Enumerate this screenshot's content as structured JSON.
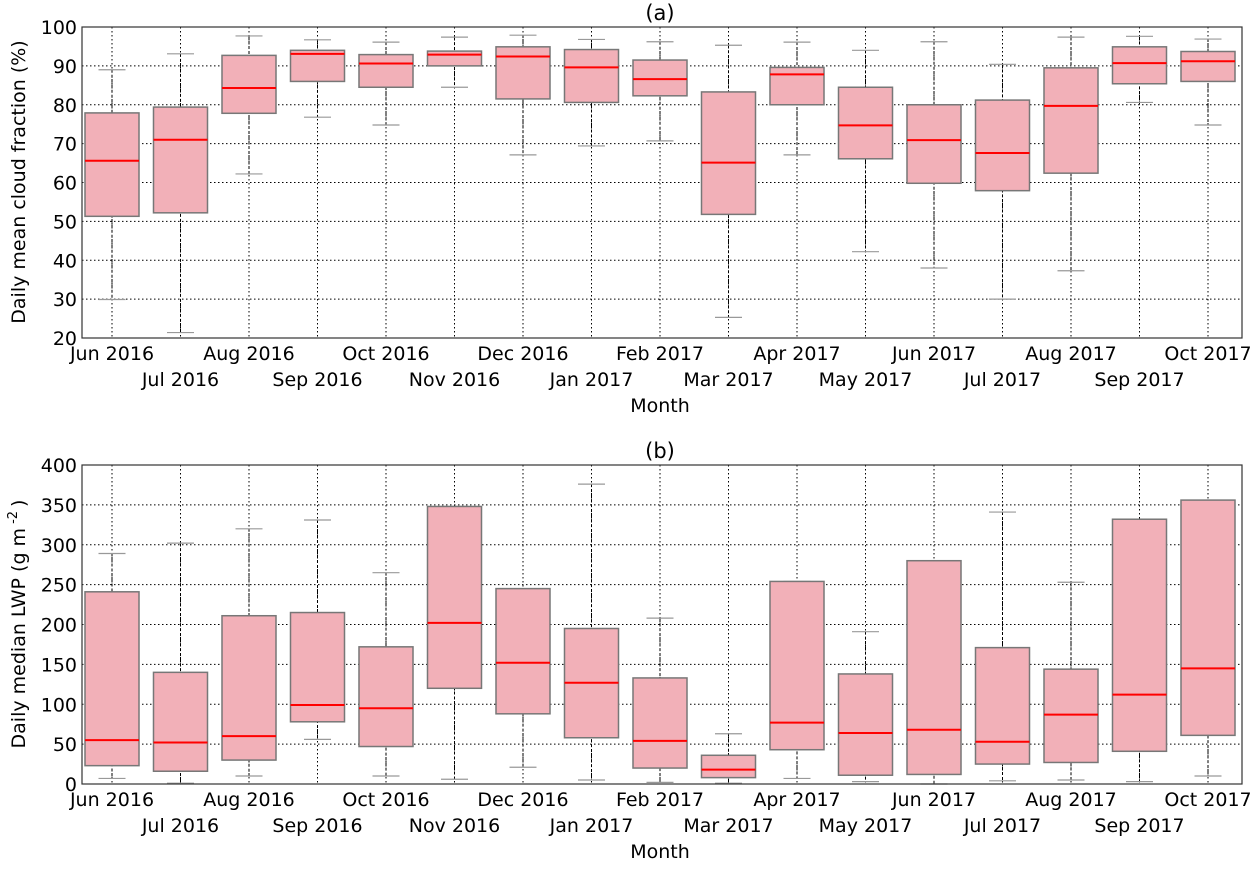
{
  "colors": {
    "box_fill": "#f2b0b8",
    "box_edge": "#777777",
    "median": "#ff0000",
    "whisker_cap": "#999999",
    "grid": "#000000"
  },
  "chart_data": [
    {
      "type": "box",
      "title": "(a)",
      "xlabel": "Month",
      "ylabel": "Daily mean cloud fraction (%)",
      "ylim": [
        20,
        100
      ],
      "yticks": [
        20,
        30,
        40,
        50,
        60,
        70,
        80,
        90,
        100
      ],
      "grid": true,
      "categories": [
        "Jun 2016",
        "Jul 2016",
        "Aug 2016",
        "Sep 2016",
        "Oct 2016",
        "Nov 2016",
        "Dec 2016",
        "Jan 2017",
        "Feb 2017",
        "Mar 2017",
        "Apr 2017",
        "May 2017",
        "Jun 2017",
        "Jul 2017",
        "Aug 2017",
        "Sep 2017",
        "Oct 2017"
      ],
      "boxes": [
        {
          "whislo": 29.9,
          "q1": 51.3,
          "med": 65.6,
          "q3": 77.9,
          "whishi": 89.0
        },
        {
          "whislo": 21.4,
          "q1": 52.2,
          "med": 71.0,
          "q3": 79.4,
          "whishi": 93.1
        },
        {
          "whislo": 62.2,
          "q1": 77.8,
          "med": 84.3,
          "q3": 92.7,
          "whishi": 97.7
        },
        {
          "whislo": 76.8,
          "q1": 86.0,
          "med": 93.1,
          "q3": 94.0,
          "whishi": 96.7
        },
        {
          "whislo": 74.8,
          "q1": 84.5,
          "med": 90.6,
          "q3": 92.9,
          "whishi": 96.1
        },
        {
          "whislo": 84.5,
          "q1": 90.0,
          "med": 92.9,
          "q3": 93.8,
          "whishi": 97.4
        },
        {
          "whislo": 67.1,
          "q1": 81.5,
          "med": 92.4,
          "q3": 94.9,
          "whishi": 97.9
        },
        {
          "whislo": 69.4,
          "q1": 80.6,
          "med": 89.6,
          "q3": 94.2,
          "whishi": 96.8
        },
        {
          "whislo": 70.7,
          "q1": 82.3,
          "med": 86.6,
          "q3": 91.5,
          "whishi": 96.2
        },
        {
          "whislo": 25.3,
          "q1": 51.8,
          "med": 65.1,
          "q3": 83.3,
          "whishi": 95.3
        },
        {
          "whislo": 67.1,
          "q1": 80.0,
          "med": 87.8,
          "q3": 89.6,
          "whishi": 96.1
        },
        {
          "whislo": 42.2,
          "q1": 66.1,
          "med": 74.7,
          "q3": 84.5,
          "whishi": 94.0
        },
        {
          "whislo": 38.0,
          "q1": 59.8,
          "med": 70.9,
          "q3": 80.0,
          "whishi": 96.2
        },
        {
          "whislo": 30.0,
          "q1": 57.9,
          "med": 67.6,
          "q3": 81.2,
          "whishi": 90.4
        },
        {
          "whislo": 37.3,
          "q1": 62.4,
          "med": 79.7,
          "q3": 89.5,
          "whishi": 97.4
        },
        {
          "whislo": 80.6,
          "q1": 85.4,
          "med": 90.7,
          "q3": 94.9,
          "whishi": 97.6
        },
        {
          "whislo": 74.8,
          "q1": 86.0,
          "med": 91.2,
          "q3": 93.7,
          "whishi": 96.9
        }
      ]
    },
    {
      "type": "box",
      "title": "(b)",
      "xlabel": "Month",
      "ylabel": "Daily median LWP (g m",
      "ylabel_sup": "-2",
      "ylabel_end": ")",
      "ylim": [
        0,
        400
      ],
      "yticks": [
        0,
        50,
        100,
        150,
        200,
        250,
        300,
        350,
        400
      ],
      "grid": true,
      "categories": [
        "Jun 2016",
        "Jul 2016",
        "Aug 2016",
        "Sep 2016",
        "Oct 2016",
        "Nov 2016",
        "Dec 2016",
        "Jan 2017",
        "Feb 2017",
        "Mar 2017",
        "Apr 2017",
        "May 2017",
        "Jun 2017",
        "Jul 2017",
        "Aug 2017",
        "Sep 2017",
        "Oct 2017"
      ],
      "boxes": [
        {
          "whislo": 7,
          "q1": 23,
          "med": 55,
          "q3": 241,
          "whishi": 289
        },
        {
          "whislo": 1,
          "q1": 16,
          "med": 52,
          "q3": 140,
          "whishi": 302
        },
        {
          "whislo": 10,
          "q1": 30,
          "med": 60,
          "q3": 211,
          "whishi": 320
        },
        {
          "whislo": 56,
          "q1": 78,
          "med": 99,
          "q3": 215,
          "whishi": 331
        },
        {
          "whislo": 10,
          "q1": 47,
          "med": 95,
          "q3": 172,
          "whishi": 265
        },
        {
          "whislo": 6,
          "q1": 120,
          "med": 202,
          "q3": 348,
          "whishi": 348
        },
        {
          "whislo": 21,
          "q1": 88,
          "med": 152,
          "q3": 245,
          "whishi": 245
        },
        {
          "whislo": 5,
          "q1": 58,
          "med": 127,
          "q3": 195,
          "whishi": 376
        },
        {
          "whislo": 2,
          "q1": 20,
          "med": 54,
          "q3": 133,
          "whishi": 208
        },
        {
          "whislo": 1,
          "q1": 8,
          "med": 18,
          "q3": 36,
          "whishi": 63
        },
        {
          "whislo": 7,
          "q1": 43,
          "med": 77,
          "q3": 254,
          "whishi": 254
        },
        {
          "whislo": 3,
          "q1": 11,
          "med": 64,
          "q3": 138,
          "whishi": 191
        },
        {
          "whislo": 0,
          "q1": 12,
          "med": 68,
          "q3": 280,
          "whishi": 280
        },
        {
          "whislo": 4,
          "q1": 25,
          "med": 53,
          "q3": 171,
          "whishi": 341
        },
        {
          "whislo": 5,
          "q1": 27,
          "med": 87,
          "q3": 144,
          "whishi": 253
        },
        {
          "whislo": 3,
          "q1": 41,
          "med": 112,
          "q3": 332,
          "whishi": 332
        },
        {
          "whislo": 10,
          "q1": 61,
          "med": 145,
          "q3": 356,
          "whishi": 356
        }
      ]
    }
  ]
}
